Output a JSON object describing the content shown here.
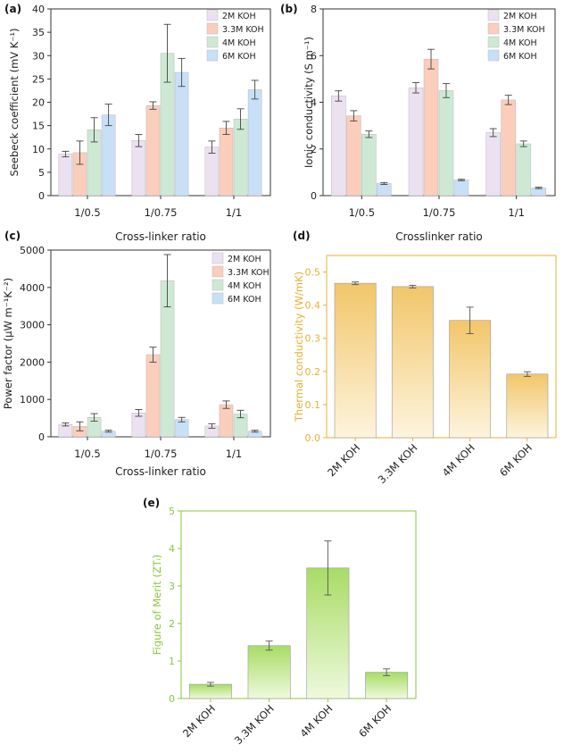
{
  "colors": {
    "c2M": "#ece1f0",
    "c33M": "#fbcdbb",
    "c4M": "#cde9d4",
    "c6M": "#c8e0f7",
    "thermal_axis": "#e8b030",
    "thermal_bar_top": "#f2c66a",
    "thermal_bar_bottom": "#fdf4dd",
    "zt_axis": "#8cc63f",
    "zt_bar_top": "#a8dc64",
    "zt_bar_bottom": "#eef9dd",
    "frame": "#333333"
  },
  "chart_data": [
    {
      "panel": "(a)",
      "type": "bar",
      "categories": [
        "1/0.5",
        "1/0.75",
        "1/1"
      ],
      "series": [
        {
          "name": "2M KOH",
          "values": [
            8.9,
            11.8,
            10.4
          ],
          "errors": [
            0.6,
            1.3,
            1.3
          ]
        },
        {
          "name": "3.3M KOH",
          "values": [
            9.2,
            19.3,
            14.5
          ],
          "errors": [
            2.5,
            0.8,
            1.4
          ]
        },
        {
          "name": "4M KOH",
          "values": [
            14.1,
            30.5,
            16.4
          ],
          "errors": [
            2.6,
            6.2,
            2.2
          ]
        },
        {
          "name": "6M KOH",
          "values": [
            17.3,
            26.4,
            22.7
          ],
          "errors": [
            2.3,
            3.0,
            2.0
          ]
        }
      ],
      "ylabel": "Seebeck coefficient (mV K⁻¹)",
      "xlabel": "Cross-linker ratio",
      "ylim": [
        0,
        40
      ],
      "yticks": [
        0,
        5,
        10,
        15,
        20,
        25,
        30,
        35,
        40
      ],
      "legend": "top-left"
    },
    {
      "panel": "(b)",
      "type": "bar",
      "categories": [
        "1/0.5",
        "1/0.75",
        "1/1"
      ],
      "series": [
        {
          "name": "2M KOH",
          "values": [
            4.27,
            4.62,
            2.7
          ],
          "errors": [
            0.22,
            0.22,
            0.17
          ]
        },
        {
          "name": "3.3M KOH",
          "values": [
            3.42,
            5.85,
            4.1
          ],
          "errors": [
            0.22,
            0.42,
            0.2
          ]
        },
        {
          "name": "4M KOH",
          "values": [
            2.63,
            4.5,
            2.22
          ],
          "errors": [
            0.14,
            0.3,
            0.12
          ]
        },
        {
          "name": "6M KOH",
          "values": [
            0.52,
            0.67,
            0.33
          ],
          "errors": [
            0.04,
            0.03,
            0.03
          ]
        }
      ],
      "ylabel": "Ionic conductivity (S m⁻¹)",
      "xlabel": "Crosslinker ratio",
      "ylim": [
        0,
        8
      ],
      "yticks": [
        0,
        2,
        4,
        6,
        8
      ],
      "legend": "top-right"
    },
    {
      "panel": "(c)",
      "type": "bar",
      "categories": [
        "1/0.5",
        "1/0.75",
        "1/1"
      ],
      "series": [
        {
          "name": "2M KOH",
          "values": [
            330,
            640,
            290
          ],
          "errors": [
            40,
            90,
            60
          ]
        },
        {
          "name": "3.3M KOH",
          "values": [
            280,
            2200,
            860
          ],
          "errors": [
            120,
            200,
            100
          ]
        },
        {
          "name": "4M KOH",
          "values": [
            520,
            4180,
            610
          ],
          "errors": [
            100,
            700,
            100
          ]
        },
        {
          "name": "6M KOH",
          "values": [
            150,
            460,
            150
          ],
          "errors": [
            25,
            60,
            25
          ]
        }
      ],
      "ylabel": "Power factor (μW m⁻¹K⁻²)",
      "xlabel": "Cross-linker ratio",
      "ylim": [
        0,
        5000
      ],
      "yticks": [
        0,
        1000,
        2000,
        3000,
        4000,
        5000
      ],
      "legend": "top-right"
    },
    {
      "panel": "(d)",
      "type": "bar",
      "categories": [
        "2M KOH",
        "3.3M KOH",
        "4M KOH",
        "6M KOH"
      ],
      "values": [
        0.466,
        0.456,
        0.354,
        0.192
      ],
      "errors": [
        0.004,
        0.004,
        0.04,
        0.007
      ],
      "ylabel": "Thermal conductivity (W/mK)",
      "xlabel": "",
      "ylim": [
        0,
        0.55
      ],
      "yticks": [
        0.0,
        0.1,
        0.2,
        0.3,
        0.4,
        0.5
      ],
      "ytick_labels": [
        "0.0",
        "0.1",
        "0.2",
        "0.3",
        "0.4",
        "0.5"
      ]
    },
    {
      "panel": "(e)",
      "type": "bar",
      "categories": [
        "2M KOH",
        "3.3M KOH",
        "4M KOH",
        "6M KOH"
      ],
      "values": [
        0.38,
        1.41,
        3.48,
        0.7
      ],
      "errors": [
        0.05,
        0.12,
        0.72,
        0.09
      ],
      "ylabel": "Figure of Merit (ZTᵢ)",
      "xlabel": "",
      "ylim": [
        0,
        5
      ],
      "yticks": [
        0,
        1,
        2,
        3,
        4,
        5
      ]
    }
  ]
}
